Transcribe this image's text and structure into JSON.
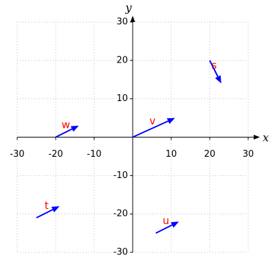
{
  "chart_data": {
    "type": "quiver",
    "x_label": "x",
    "y_label": "y",
    "xlim": [
      -30,
      30
    ],
    "ylim": [
      -30,
      30
    ],
    "xticks": [
      -30,
      -20,
      -10,
      10,
      20,
      30
    ],
    "yticks": [
      -30,
      -20,
      -10,
      10,
      20,
      30
    ],
    "grid": true,
    "color": "#0000ff",
    "label_color": "#ff0000",
    "vectors": [
      {
        "name": "v",
        "x": 0,
        "y": 0,
        "dx": 11,
        "dy": 5
      },
      {
        "name": "w",
        "x": -20,
        "y": 0,
        "dx": 6,
        "dy": 3
      },
      {
        "name": "s",
        "x": 20,
        "y": 20,
        "dx": 3,
        "dy": -6
      },
      {
        "name": "t",
        "x": -25,
        "y": -21,
        "dx": 6,
        "dy": 3
      },
      {
        "name": "u",
        "x": 6,
        "y": -25,
        "dx": 6,
        "dy": 3
      }
    ]
  }
}
